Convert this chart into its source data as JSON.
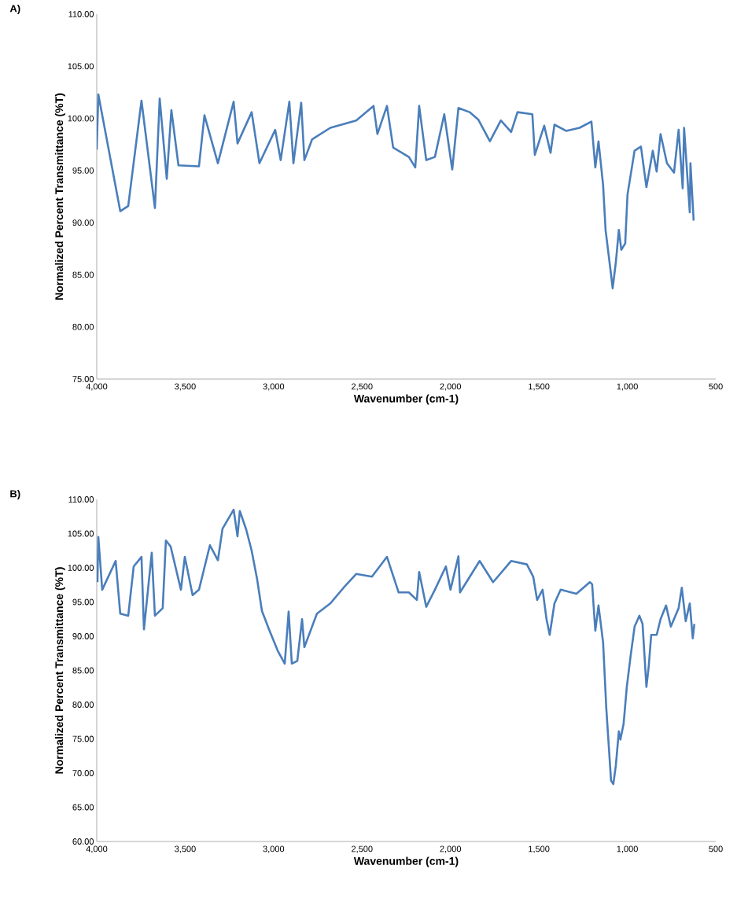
{
  "chart_data": [
    {
      "type": "line",
      "title": "A)",
      "xlabel": "Wavenumber (cm-1)",
      "ylabel": "Normalized Percent Transmittance (%T)",
      "xlim": [
        4000,
        500
      ],
      "xticks": [
        {
          "value": 4000,
          "label": "4,000"
        },
        {
          "value": 3500,
          "label": "3,500"
        },
        {
          "value": 3000,
          "label": "3,000"
        },
        {
          "value": 2500,
          "label": "2,500"
        },
        {
          "value": 2000,
          "label": "2,000"
        },
        {
          "value": 1500,
          "label": "1,500"
        },
        {
          "value": 1000,
          "label": "1,000"
        },
        500
      ],
      "ylim": [
        75,
        110
      ],
      "yticks": [
        {
          "value": 75,
          "label": "75.00"
        },
        {
          "value": 80,
          "label": "80.00"
        },
        {
          "value": 85,
          "label": "85.00"
        },
        {
          "value": 90,
          "label": "90.00"
        },
        {
          "value": 95,
          "label": "95.00"
        },
        {
          "value": 100,
          "label": "100.00"
        },
        {
          "value": 105,
          "label": "105.00"
        },
        {
          "value": 110,
          "label": "110.00"
        }
      ],
      "x": [
        4000,
        3991,
        3867,
        3822,
        3747,
        3671,
        3644,
        3604,
        3578,
        3538,
        3422,
        3391,
        3315,
        3226,
        3204,
        3124,
        3080,
        2991,
        2960,
        2911,
        2888,
        2844,
        2826,
        2782,
        2679,
        2533,
        2435,
        2413,
        2359,
        2324,
        2235,
        2199,
        2177,
        2137,
        2088,
        2035,
        1990,
        1955,
        1892,
        1843,
        1777,
        1715,
        1657,
        1621,
        1537,
        1523,
        1470,
        1434,
        1412,
        1346,
        1270,
        1203,
        1181,
        1163,
        1137,
        1123,
        1092,
        1083,
        1065,
        1048,
        1034,
        1012,
        999,
        959,
        923,
        892,
        856,
        834,
        812,
        776,
        736,
        710,
        687,
        679,
        647,
        643,
        625
      ],
      "series": [
        {
          "color": "#4a7ebb",
          "values": [
            97.0,
            102.3,
            91.1,
            91.6,
            101.7,
            91.4,
            101.9,
            94.2,
            100.8,
            95.5,
            95.4,
            100.3,
            95.7,
            101.6,
            97.6,
            100.6,
            95.7,
            98.9,
            96.0,
            101.6,
            95.7,
            101.5,
            96.0,
            98.0,
            99.1,
            99.8,
            101.2,
            98.5,
            101.2,
            97.2,
            96.3,
            95.3,
            101.2,
            96.0,
            96.3,
            100.4,
            95.1,
            101.0,
            100.6,
            99.9,
            97.8,
            99.8,
            98.7,
            100.6,
            100.4,
            96.5,
            99.3,
            96.7,
            99.4,
            98.8,
            99.1,
            99.7,
            95.3,
            97.8,
            93.6,
            89.3,
            85.0,
            83.7,
            86.2,
            89.3,
            87.4,
            88.0,
            92.7,
            96.9,
            97.3,
            93.4,
            96.9,
            94.9,
            98.5,
            95.7,
            94.8,
            98.9,
            93.3,
            99.1,
            91.0,
            95.7,
            90.2
          ]
        }
      ]
    },
    {
      "type": "line",
      "title": "B)",
      "xlabel": "Wavenumber (cm-1)",
      "ylabel": "Normalized Percent Transmittance (%T)",
      "xlim": [
        4000,
        500
      ],
      "xticks": [
        {
          "value": 4000,
          "label": "4,000"
        },
        {
          "value": 3500,
          "label": "3,500"
        },
        {
          "value": 3000,
          "label": "3,000"
        },
        {
          "value": 2500,
          "label": "2,500"
        },
        {
          "value": 2000,
          "label": "2,000"
        },
        {
          "value": 1500,
          "label": "1,500"
        },
        {
          "value": 1000,
          "label": "1,000"
        },
        500
      ],
      "ylim": [
        60,
        110
      ],
      "yticks": [
        {
          "value": 60,
          "label": "60.00"
        },
        {
          "value": 65,
          "label": "65.00"
        },
        {
          "value": 70,
          "label": "70.00"
        },
        {
          "value": 75,
          "label": "75.00"
        },
        {
          "value": 80,
          "label": "80.00"
        },
        {
          "value": 85,
          "label": "85.00"
        },
        {
          "value": 90,
          "label": "90.00"
        },
        {
          "value": 95,
          "label": "95.00"
        },
        {
          "value": 100,
          "label": "100.00"
        },
        {
          "value": 105,
          "label": "105.00"
        },
        {
          "value": 110,
          "label": "110.00"
        }
      ],
      "x": [
        3996,
        3991,
        3969,
        3893,
        3867,
        3822,
        3791,
        3747,
        3733,
        3689,
        3671,
        3627,
        3609,
        3582,
        3524,
        3502,
        3458,
        3422,
        3360,
        3315,
        3289,
        3226,
        3204,
        3191,
        3155,
        3124,
        3093,
        3066,
        3026,
        2977,
        2937,
        2915,
        2897,
        2866,
        2839,
        2826,
        2755,
        2679,
        2604,
        2533,
        2444,
        2359,
        2293,
        2235,
        2190,
        2177,
        2137,
        2088,
        2026,
        2000,
        1955,
        1946,
        1835,
        1759,
        1657,
        1568,
        1532,
        1510,
        1479,
        1457,
        1439,
        1412,
        1377,
        1288,
        1212,
        1199,
        1181,
        1163,
        1137,
        1119,
        1092,
        1079,
        1065,
        1048,
        1039,
        1021,
        1003,
        981,
        959,
        932,
        914,
        892,
        879,
        865,
        834,
        812,
        781,
        754,
        710,
        692,
        670,
        647,
        630,
        621
      ],
      "series": [
        {
          "color": "#4a7ebb",
          "values": [
            97.9,
            104.5,
            96.8,
            101.0,
            93.3,
            93.0,
            100.2,
            101.6,
            91.0,
            102.2,
            93.0,
            94.1,
            104.0,
            103.1,
            96.8,
            101.6,
            96.0,
            96.8,
            103.3,
            101.1,
            105.7,
            108.5,
            104.6,
            108.3,
            105.6,
            102.5,
            98.3,
            93.7,
            91.0,
            87.9,
            86.0,
            93.6,
            86.0,
            86.4,
            92.5,
            88.4,
            93.3,
            94.8,
            97.1,
            99.1,
            98.7,
            101.6,
            96.4,
            96.4,
            95.3,
            99.4,
            94.3,
            96.8,
            100.2,
            96.8,
            101.7,
            96.4,
            101.0,
            97.9,
            101.0,
            100.5,
            98.7,
            95.3,
            96.8,
            92.5,
            90.2,
            94.8,
            96.8,
            96.2,
            97.9,
            97.6,
            90.8,
            94.5,
            89.1,
            79.5,
            68.9,
            68.4,
            71.1,
            76.1,
            74.9,
            77.2,
            82.6,
            87.2,
            91.4,
            93.0,
            91.8,
            82.6,
            85.6,
            90.2,
            90.2,
            92.5,
            94.5,
            91.4,
            94.1,
            97.1,
            92.2,
            94.8,
            89.7,
            91.8
          ]
        }
      ]
    }
  ]
}
